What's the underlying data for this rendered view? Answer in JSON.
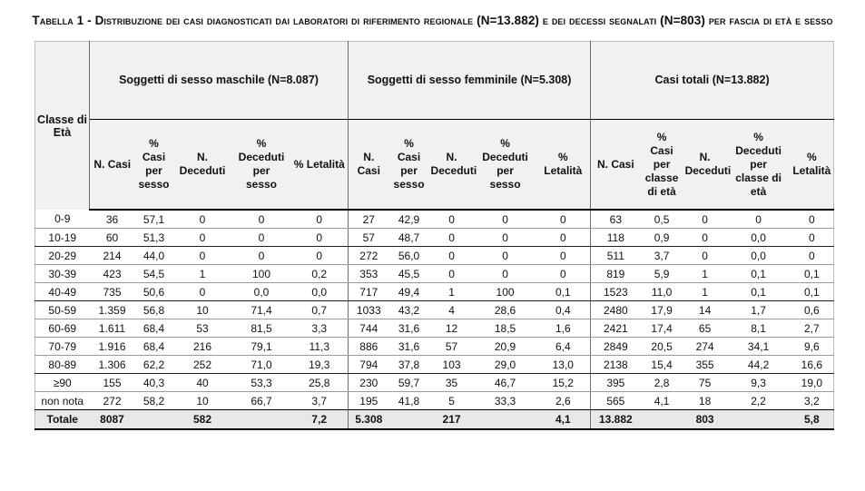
{
  "title": {
    "text": "Tabella 1 -  Distribuzione dei casi diagnosticati dai laboratori di riferimento regionale (N=13.882) e dei decessi segnalati (N=803) per fascia di età e sesso"
  },
  "table": {
    "corner_header": "Classe di\nEtà",
    "groups": [
      {
        "label": "Soggetti di sesso maschile (N=8.087)",
        "columns": [
          "N. Casi",
          "%\nCasi\nper\nsesso",
          "N. Deceduti",
          "%\nDeceduti\nper\nsesso",
          "% Letalità"
        ]
      },
      {
        "label": "Soggetti di sesso femminile (N=5.308)",
        "columns": [
          "N.\nCasi",
          "%\nCasi\nper\nsesso",
          "N.\nDeceduti",
          "%\nDeceduti\nper\nsesso",
          "%\nLetalità"
        ]
      },
      {
        "label": "Casi totali (N=13.882)",
        "columns": [
          "N. Casi",
          "%\nCasi\nper\nclasse\ndi età",
          "N.\nDeceduti",
          "%\nDeceduti\nper\nclasse di\netà",
          "%\nLetalità"
        ]
      }
    ],
    "rows": [
      {
        "age": "0-9",
        "values": [
          "36",
          "57,1",
          "0",
          "0",
          "0",
          "27",
          "42,9",
          "0",
          "0",
          "0",
          "63",
          "0,5",
          "0",
          "0",
          "0"
        ]
      },
      {
        "age": "10-19",
        "values": [
          "60",
          "51,3",
          "0",
          "0",
          "0",
          "57",
          "48,7",
          "0",
          "0",
          "0",
          "118",
          "0,9",
          "0",
          "0,0",
          "0"
        ]
      },
      {
        "age": "20-29",
        "values": [
          "214",
          "44,0",
          "0",
          "0",
          "0",
          "272",
          "56,0",
          "0",
          "0",
          "0",
          "511",
          "3,7",
          "0",
          "0,0",
          "0"
        ]
      },
      {
        "age": "30-39",
        "values": [
          "423",
          "54,5",
          "1",
          "100",
          "0,2",
          "353",
          "45,5",
          "0",
          "0",
          "0",
          "819",
          "5,9",
          "1",
          "0,1",
          "0,1"
        ]
      },
      {
        "age": "40-49",
        "values": [
          "735",
          "50,6",
          "0",
          "0,0",
          "0,0",
          "717",
          "49,4",
          "1",
          "100",
          "0,1",
          "1523",
          "11,0",
          "1",
          "0,1",
          "0,1"
        ]
      },
      {
        "age": "50-59",
        "values": [
          "1.359",
          "56,8",
          "10",
          "71,4",
          "0,7",
          "1033",
          "43,2",
          "4",
          "28,6",
          "0,4",
          "2480",
          "17,9",
          "14",
          "1,7",
          "0,6"
        ]
      },
      {
        "age": "60-69",
        "values": [
          "1.611",
          "68,4",
          "53",
          "81,5",
          "3,3",
          "744",
          "31,6",
          "12",
          "18,5",
          "1,6",
          "2421",
          "17,4",
          "65",
          "8,1",
          "2,7"
        ]
      },
      {
        "age": "70-79",
        "values": [
          "1.916",
          "68,4",
          "216",
          "79,1",
          "11,3",
          "886",
          "31,6",
          "57",
          "20,9",
          "6,4",
          "2849",
          "20,5",
          "274",
          "34,1",
          "9,6"
        ]
      },
      {
        "age": "80-89",
        "values": [
          "1.306",
          "62,2",
          "252",
          "71,0",
          "19,3",
          "794",
          "37,8",
          "103",
          "29,0",
          "13,0",
          "2138",
          "15,4",
          "355",
          "44,2",
          "16,6"
        ]
      },
      {
        "age": "≥90",
        "values": [
          "155",
          "40,3",
          "40",
          "53,3",
          "25,8",
          "230",
          "59,7",
          "35",
          "46,7",
          "15,2",
          "395",
          "2,8",
          "75",
          "9,3",
          "19,0"
        ]
      },
      {
        "age": "non nota",
        "values": [
          "272",
          "58,2",
          "10",
          "66,7",
          "3,7",
          "195",
          "41,8",
          "5",
          "33,3",
          "2,6",
          "565",
          "4,1",
          "18",
          "2,2",
          "3,2"
        ]
      }
    ],
    "heavy_border_after_rows": [
      1,
      4,
      8
    ],
    "total_row": {
      "age": "Totale",
      "values": [
        "8087",
        "",
        "582",
        "",
        "7,2",
        "5.308",
        "",
        "217",
        "",
        "4,1",
        "13.882",
        "",
        "803",
        "",
        "5,8"
      ]
    }
  },
  "colors": {
    "header_bg": "#f1f1f0",
    "total_row_bg": "#e8e8e7",
    "border_dark": "#000000",
    "border_light": "#9c9c9c"
  }
}
